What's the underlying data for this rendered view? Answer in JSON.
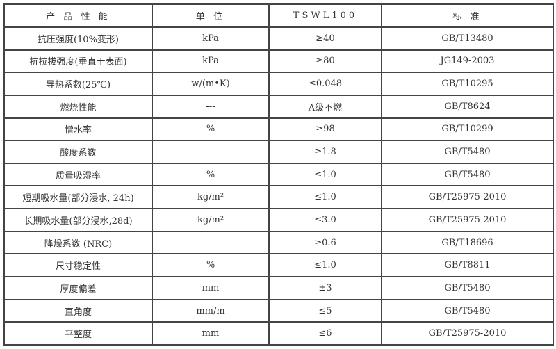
{
  "header": [
    "产 品 性 能",
    "单  位",
    "TSWL100",
    "标  准"
  ],
  "rows": [
    [
      "抗压强度(10%变形)",
      "kPa",
      "≥40",
      "GB/T13480"
    ],
    [
      "抗拉拔强度(垂直于表面)",
      "kPa",
      "≥80",
      "JG149-2003"
    ],
    [
      "导热系数(25℃)",
      "w/(m•K)",
      "≤0.048",
      "GB/T10295"
    ],
    [
      "燃烧性能",
      "---",
      "A级不燃",
      "GB/T8624"
    ],
    [
      "憎水率",
      "%",
      "≥98",
      "GB/T10299"
    ],
    [
      "酸度系数",
      "---",
      "≥1.8",
      "GB/T5480"
    ],
    [
      "质量吸湿率",
      "%",
      "≤1.0",
      "GB/T5480"
    ],
    [
      "短期吸水量(部分浸水, 24h)",
      "kg/m²",
      "≤1.0",
      "GB/T25975-2010"
    ],
    [
      "长期吸水量(部分浸水,28d)",
      "kg/m²",
      "≤3.0",
      "GB/T25975-2010"
    ],
    [
      "降燥系数 (NRC)",
      "---",
      "≥0.6",
      "GB/T18696"
    ],
    [
      "尺寸稳定性",
      "%",
      "≤1.0",
      "GB/T8811"
    ],
    [
      "厚度偏差",
      "mm",
      "±3",
      "GB/T5480"
    ],
    [
      "直角度",
      "mm/m",
      "≤5",
      "GB/T5480"
    ],
    [
      "平整度",
      "mm",
      "≤6",
      "GB/T25975-2010"
    ]
  ]
}
